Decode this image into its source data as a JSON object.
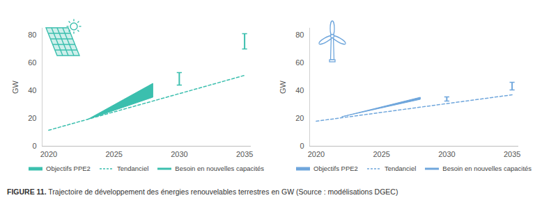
{
  "chart_data": [
    {
      "type": "line",
      "y_label": "GW",
      "xlim": [
        2019.5,
        2035.5
      ],
      "xticks": [
        2020,
        2025,
        2030,
        2035
      ],
      "ylim": [
        0,
        85
      ],
      "yticks": [
        0,
        20,
        40,
        60,
        80
      ],
      "grid": false,
      "legend": "bottom",
      "series": [
        {
          "name": "Objectifs PPE2",
          "type": "area",
          "color": "#3bbfae",
          "x": [
            2023,
            2028
          ],
          "low": [
            19,
            35
          ],
          "high": [
            19,
            45
          ]
        },
        {
          "name": "Tendanciel",
          "type": "line",
          "line_style": "dashed",
          "color": "#3bbfae",
          "x": [
            2020,
            2035
          ],
          "values": [
            11.5,
            51
          ]
        },
        {
          "name": "Besoin en nouvelles capacités",
          "type": "errorbar",
          "color": "#3bbfae",
          "x": [
            2030,
            2035
          ],
          "low": [
            44,
            70
          ],
          "high": [
            53,
            81
          ]
        }
      ]
    },
    {
      "type": "line",
      "y_label": "GW",
      "xlim": [
        2019.5,
        2035.5
      ],
      "xticks": [
        2020,
        2025,
        2030,
        2035
      ],
      "ylim": [
        0,
        85
      ],
      "yticks": [
        0,
        20,
        40,
        60,
        80
      ],
      "grid": false,
      "legend": "bottom",
      "series": [
        {
          "name": "Objectifs PPE2",
          "type": "area",
          "color": "#6fa6dc",
          "x": [
            2022,
            2028
          ],
          "low": [
            21,
            33.5
          ],
          "high": [
            21,
            35
          ]
        },
        {
          "name": "Tendanciel",
          "type": "line",
          "line_style": "dashed",
          "color": "#6fa6dc",
          "x": [
            2020,
            2035
          ],
          "values": [
            18,
            37
          ]
        },
        {
          "name": "Besoin en nouvelles capacités",
          "type": "errorbar",
          "color": "#6fa6dc",
          "x": [
            2030,
            2035
          ],
          "low": [
            32.5,
            40.5
          ],
          "high": [
            35.5,
            46
          ]
        }
      ]
    }
  ],
  "caption": {
    "label": "FIGURE 11.",
    "text": "Trajectoire de développement des énergies renouvelables terrestres en GW (Source : modélisations DGEC)"
  }
}
